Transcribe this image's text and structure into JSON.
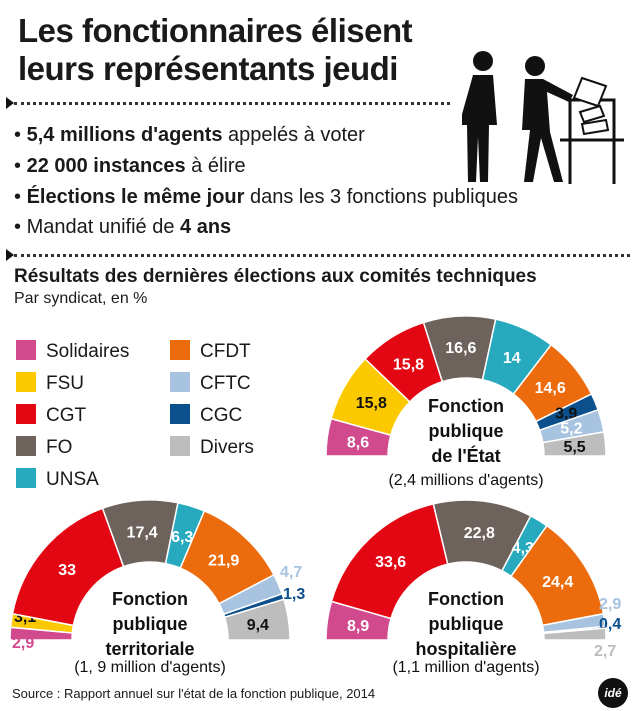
{
  "title": "Les fonctionnaires élisent leurs représentants jeudi",
  "bullets": [
    {
      "bold": "5,4 millions d'agents",
      "rest": " appelés à voter",
      "lead": "",
      "tail": ""
    },
    {
      "bold": "22 000 instances",
      "rest": " à élire",
      "lead": "",
      "tail": ""
    },
    {
      "bold": "Élections le même jour",
      "rest": " dans les 3 fonctions publiques",
      "lead": "",
      "tail": ""
    },
    {
      "lead": "Mandat unifié de ",
      "bold": "4 ans",
      "rest": "",
      "tail": ""
    }
  ],
  "bullet_char": "•",
  "results_title": "Résultats des dernières élections aux comités techniques",
  "results_subtitle": "Par syndicat, en %",
  "source": "Source : Rapport annuel sur l'état de la fonction publique, 2014",
  "logo_text": "idé",
  "colors": {
    "Solidaires": "#d24a8e",
    "FSU": "#fcc900",
    "CGT": "#e30613",
    "FO": "#6e625d",
    "UNSA": "#27a9be",
    "CFDT": "#ec6b0c",
    "CFTC": "#a8c3e0",
    "CGC": "#0b4f8c",
    "Divers": "#bdbdbd"
  },
  "chart_data": {
    "type": "pie",
    "categories": [
      "Solidaires",
      "FSU",
      "CGT",
      "FO",
      "UNSA",
      "CFDT",
      "CFTC",
      "CGC",
      "Divers"
    ],
    "legend": [
      [
        "Solidaires",
        "CFDT"
      ],
      [
        "FSU",
        "CFTC"
      ],
      [
        "CGT",
        "CGC"
      ],
      [
        "FO",
        "Divers"
      ],
      [
        "UNSA"
      ]
    ],
    "charts": [
      {
        "id": "etat",
        "title_lines": [
          "Fonction",
          "publique",
          "de l'État"
        ],
        "subtitle": "(2,4 millions d'agents)",
        "series": [
          {
            "name": "Solidaires",
            "value": 8.6,
            "label": "8,6"
          },
          {
            "name": "FSU",
            "value": 15.8,
            "label": "15,8"
          },
          {
            "name": "CGT",
            "value": 15.8,
            "label": "15,8"
          },
          {
            "name": "FO",
            "value": 16.6,
            "label": "16,6"
          },
          {
            "name": "UNSA",
            "value": 14,
            "label": "14"
          },
          {
            "name": "CFDT",
            "value": 14.6,
            "label": "14,6"
          },
          {
            "name": "CGC",
            "value": 3.9,
            "label": "3,9"
          },
          {
            "name": "CFTC",
            "value": 5.2,
            "label": "5,2"
          },
          {
            "name": "Divers",
            "value": 5.5,
            "label": "5,5"
          }
        ]
      },
      {
        "id": "territoriale",
        "title_lines": [
          "Fonction",
          "publique",
          "territoriale"
        ],
        "subtitle": "(1, 9 million d'agents)",
        "series": [
          {
            "name": "Solidaires",
            "value": 2.9,
            "label": "2,9"
          },
          {
            "name": "FSU",
            "value": 3.1,
            "label": "3,1"
          },
          {
            "name": "CGT",
            "value": 33,
            "label": "33"
          },
          {
            "name": "FO",
            "value": 17.4,
            "label": "17,4"
          },
          {
            "name": "UNSA",
            "value": 6.3,
            "label": "6,3"
          },
          {
            "name": "CFDT",
            "value": 21.9,
            "label": "21,9"
          },
          {
            "name": "CFTC",
            "value": 4.7,
            "label": "4,7"
          },
          {
            "name": "CGC",
            "value": 1.3,
            "label": "1,3"
          },
          {
            "name": "Divers",
            "value": 9.4,
            "label": "9,4"
          }
        ]
      },
      {
        "id": "hospitaliere",
        "title_lines": [
          "Fonction",
          "publique",
          "hospitalière"
        ],
        "subtitle": "(1,1 million d'agents)",
        "series": [
          {
            "name": "Solidaires",
            "value": 8.9,
            "label": "8,9"
          },
          {
            "name": "CGT",
            "value": 33.6,
            "label": "33,6"
          },
          {
            "name": "FO",
            "value": 22.8,
            "label": "22,8"
          },
          {
            "name": "UNSA",
            "value": 4.3,
            "label": "4,3"
          },
          {
            "name": "CFDT",
            "value": 24.4,
            "label": "24,4"
          },
          {
            "name": "CFTC",
            "value": 2.9,
            "label": "2,9"
          },
          {
            "name": "CGC",
            "value": 0.4,
            "label": "0,4"
          },
          {
            "name": "Divers",
            "value": 2.7,
            "label": "2,7"
          }
        ]
      }
    ]
  }
}
